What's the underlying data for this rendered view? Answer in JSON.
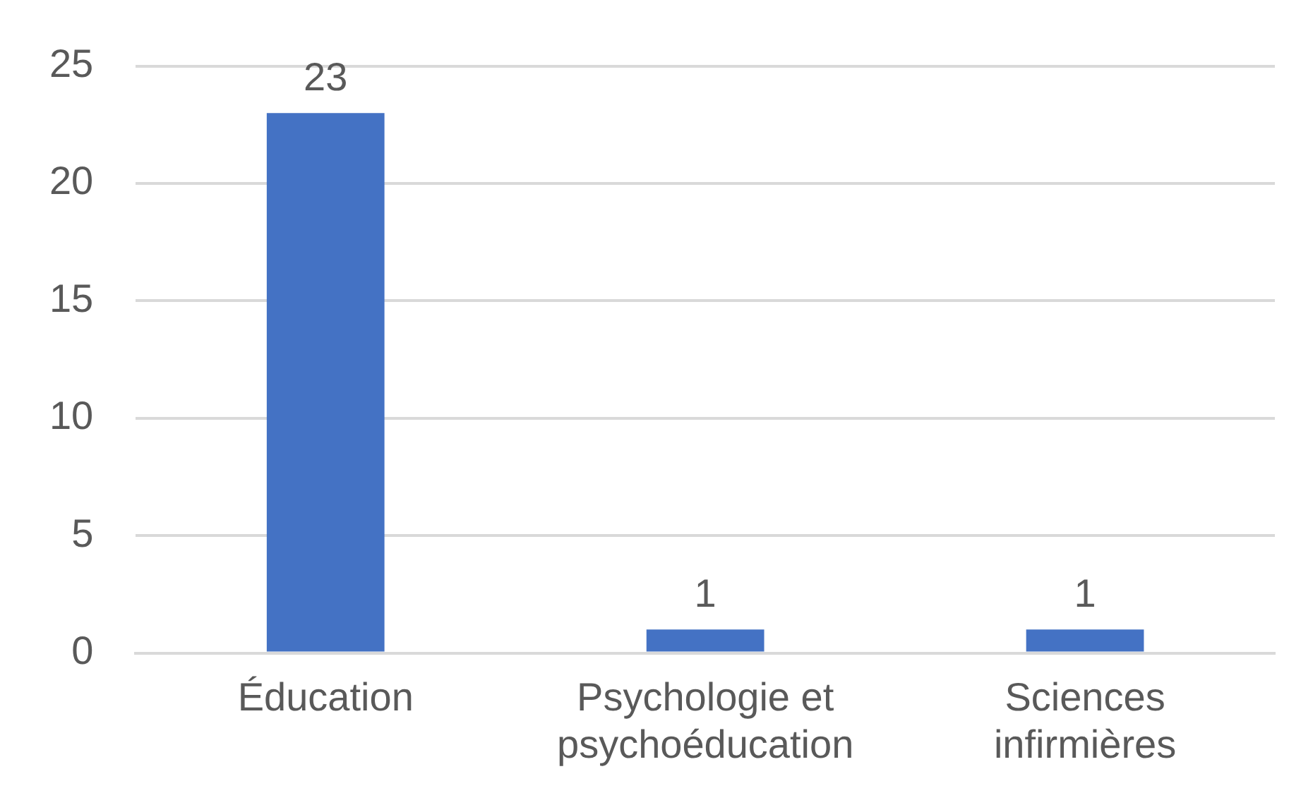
{
  "chart_data": {
    "type": "bar",
    "categories": [
      "Éducation",
      "Psychologie et psychoéducation",
      "Sciences infirmières"
    ],
    "values": [
      23,
      1,
      1
    ],
    "color": "#4472c4",
    "ylim": [
      0,
      25
    ],
    "yticks": [
      0,
      5,
      10,
      15,
      20,
      25
    ],
    "grid": "y",
    "legend": false,
    "data_labels": true
  }
}
